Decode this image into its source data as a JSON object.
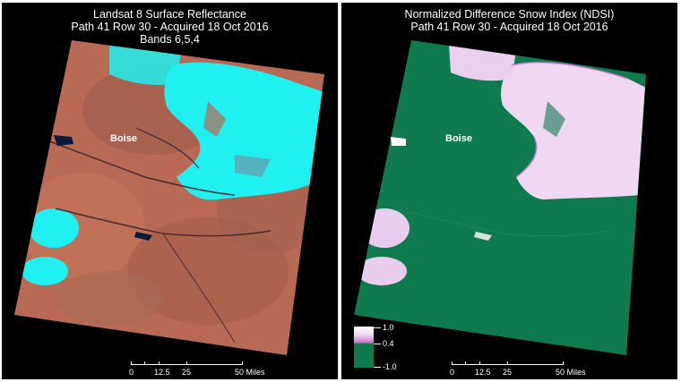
{
  "left_panel": {
    "title_lines": [
      "Landsat 8 Surface Reflectance",
      "Path 41 Row 30 - Acquired 18 Oct 2016",
      "Bands 6,5,4"
    ],
    "city_label": "Boise",
    "scale": {
      "ticks": [
        "0",
        "12.5",
        "25",
        "50 Miles"
      ]
    },
    "colors": {
      "terrain": "#b86a54",
      "snow": "#20f0f0",
      "water": "#0a1a3a"
    }
  },
  "right_panel": {
    "title_lines": [
      "Normalized Difference Snow Index (NDSI)",
      "Path 41 Row 30 - Acquired 18 Oct 2016"
    ],
    "city_label": "Boise",
    "scale": {
      "ticks": [
        "0",
        "12.5",
        "25",
        "50 Miles"
      ]
    },
    "legend": {
      "max_label": "1.0",
      "mid_label": "0.4",
      "min_label": "-1.0"
    },
    "colors": {
      "no_snow": "#0e7a4e",
      "snow": "#f0d8f2",
      "snow_edge": "#c86ec8"
    }
  }
}
